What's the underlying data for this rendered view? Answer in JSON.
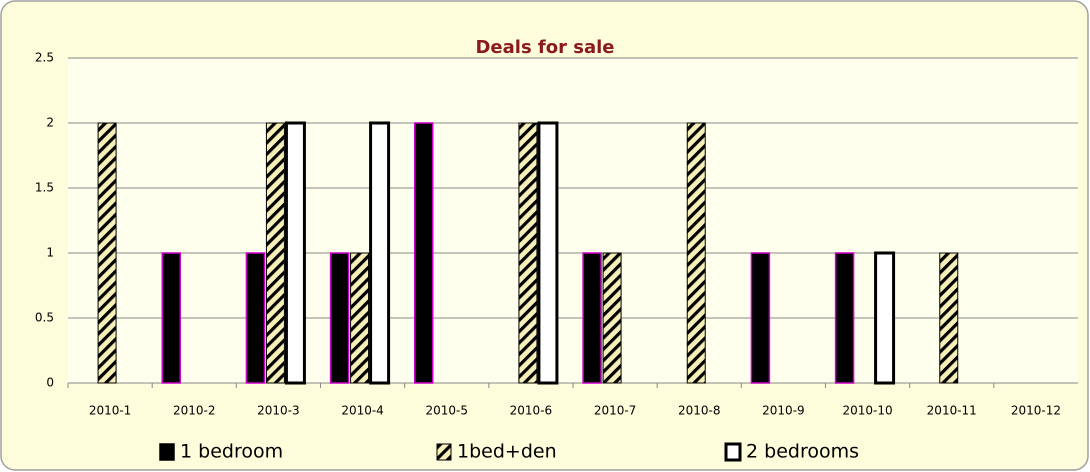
{
  "chart_data": {
    "type": "bar",
    "title": "Deals for sale",
    "categories": [
      "2010-1",
      "2010-2",
      "2010-3",
      "2010-4",
      "2010-5",
      "2010-6",
      "2010-7",
      "2010-8",
      "2010-9",
      "2010-10",
      "2010-11",
      "2010-12"
    ],
    "series": [
      {
        "name": "1 bedroom",
        "color": "#000000",
        "style": "solid",
        "values": [
          0,
          1,
          1,
          1,
          2,
          0,
          1,
          0,
          1,
          1,
          0,
          0
        ]
      },
      {
        "name": "1bed+den",
        "color": "#000000",
        "style": "hatch",
        "values": [
          2,
          0,
          2,
          1,
          0,
          2,
          1,
          2,
          0,
          0,
          1,
          0
        ]
      },
      {
        "name": "2 bedrooms",
        "color": "#000000",
        "style": "outline",
        "values": [
          0,
          0,
          2,
          2,
          0,
          2,
          0,
          0,
          0,
          1,
          0,
          0
        ]
      }
    ],
    "ylim": [
      0,
      2.5
    ],
    "yticks": [
      0,
      0.5,
      1,
      1.5,
      2,
      2.5
    ],
    "grid": true,
    "legend": "bottom"
  }
}
